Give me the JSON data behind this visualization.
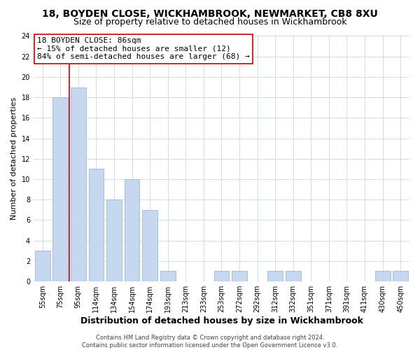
{
  "title": "18, BOYDEN CLOSE, WICKHAMBROOK, NEWMARKET, CB8 8XU",
  "subtitle": "Size of property relative to detached houses in Wickhambrook",
  "xlabel": "Distribution of detached houses by size in Wickhambrook",
  "ylabel": "Number of detached properties",
  "bar_labels": [
    "55sqm",
    "75sqm",
    "95sqm",
    "114sqm",
    "134sqm",
    "154sqm",
    "174sqm",
    "193sqm",
    "213sqm",
    "233sqm",
    "253sqm",
    "272sqm",
    "292sqm",
    "312sqm",
    "332sqm",
    "351sqm",
    "371sqm",
    "391sqm",
    "411sqm",
    "430sqm",
    "450sqm"
  ],
  "bar_values": [
    3,
    18,
    19,
    11,
    8,
    10,
    7,
    1,
    0,
    0,
    1,
    1,
    0,
    1,
    1,
    0,
    0,
    0,
    0,
    1,
    1
  ],
  "bar_color": "#c5d8f0",
  "bar_edge_color": "#a0b8d8",
  "vline_color": "#cc0000",
  "annotation_line1": "18 BOYDEN CLOSE: 86sqm",
  "annotation_line2": "← 15% of detached houses are smaller (12)",
  "annotation_line3": "84% of semi-detached houses are larger (68) →",
  "annotation_box_color": "#ffffff",
  "annotation_box_edge": "#cc0000",
  "ylim": [
    0,
    24
  ],
  "yticks": [
    0,
    2,
    4,
    6,
    8,
    10,
    12,
    14,
    16,
    18,
    20,
    22,
    24
  ],
  "footer": "Contains HM Land Registry data © Crown copyright and database right 2024.\nContains public sector information licensed under the Open Government Licence v3.0.",
  "bg_color": "#ffffff",
  "grid_color": "#d0dce8",
  "title_fontsize": 10,
  "subtitle_fontsize": 9,
  "tick_fontsize": 7,
  "label_fontsize": 9,
  "ylabel_fontsize": 8,
  "footer_fontsize": 6,
  "ann_fontsize": 8
}
